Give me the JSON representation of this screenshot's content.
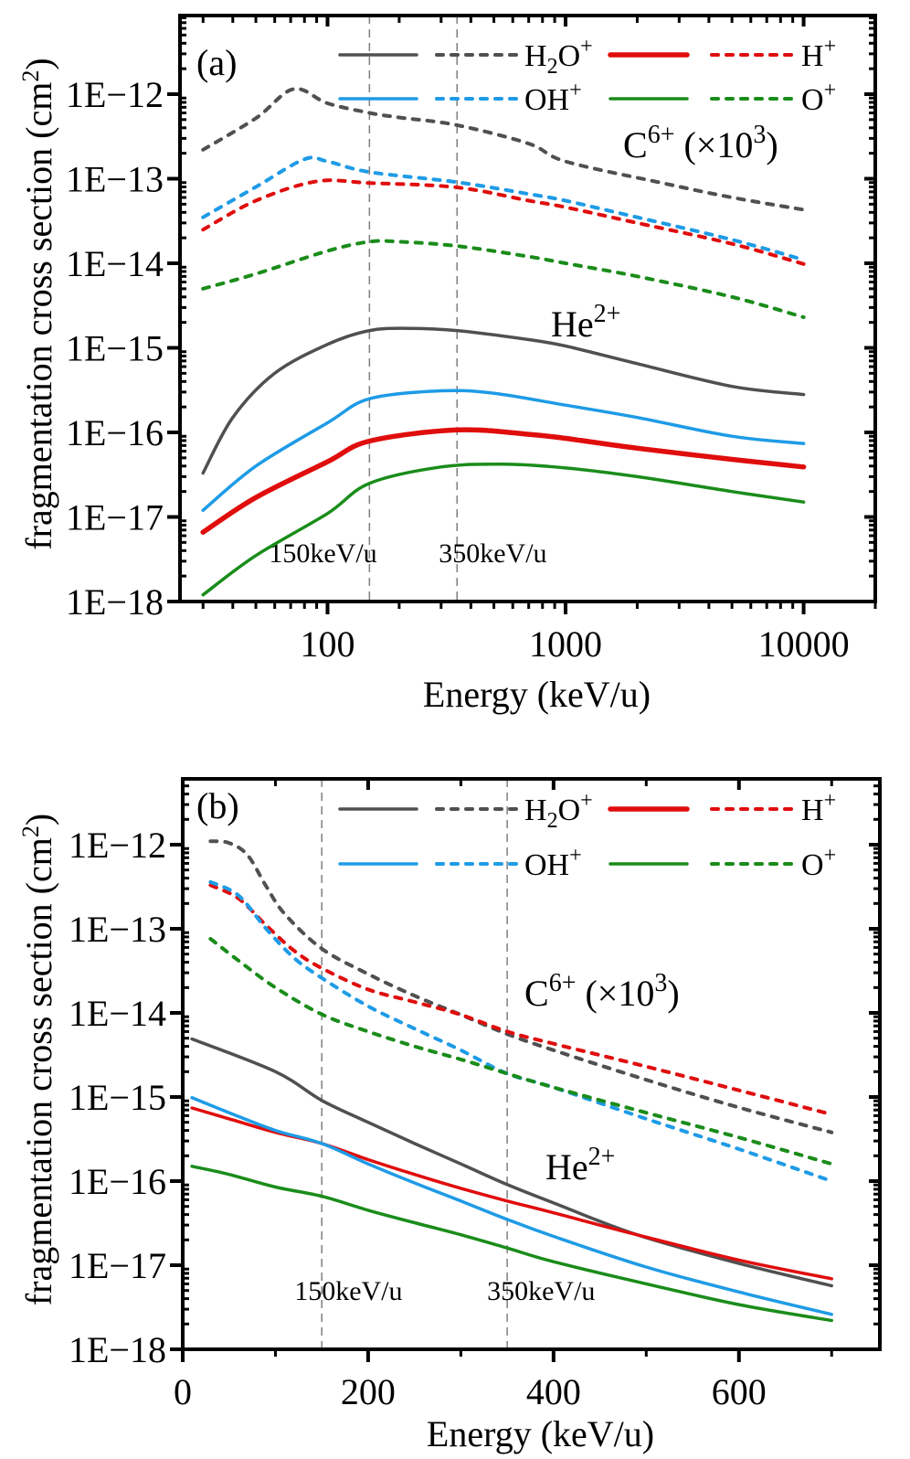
{
  "figure": {
    "colors": {
      "H2O+": "#505050",
      "H+": "#e00d0d",
      "OH+": "#1e9be6",
      "O+": "#1a8c1a",
      "axis": "#000000",
      "guide": "#7f7f7f"
    }
  },
  "chart_data": [
    {
      "panel": "(a)",
      "type": "line",
      "x_scale": "log",
      "y_scale": "log",
      "xlabel": "Energy (keV/u)",
      "ylabel": "fragmentation cross section (cm2)",
      "xlim": [
        24,
        20000
      ],
      "ylim": [
        1e-18,
        4e-12
      ],
      "x_ticks": [
        100,
        1000,
        10000
      ],
      "x_tick_labels": [
        "100",
        "1000",
        "10000"
      ],
      "y_ticks": [
        1e-12,
        1e-13,
        1e-14,
        1e-15,
        1e-16,
        1e-17,
        1e-18
      ],
      "y_tick_labels": [
        "1E−12",
        "1E−13",
        "1E−14",
        "1E−15",
        "1E−16",
        "1E−17",
        "1E−18"
      ],
      "grid": false,
      "legend_position": "top-right",
      "guides": [
        {
          "x": 150,
          "label": "150keV/u"
        },
        {
          "x": 350,
          "label": "350keV/u"
        }
      ],
      "annotations": [
        {
          "text": "C",
          "sup": "6+",
          "suffix": " (×10",
          "suffix_sup": "3",
          "tail": ")",
          "group": "C6+ (x10^3)"
        },
        {
          "text": "He",
          "sup": "2+",
          "group": "He2+"
        }
      ],
      "series": [
        {
          "name": "H2O+ C6+ (x10^3)",
          "fragment": "H2O+",
          "projectile": "C6+",
          "style": "dashed",
          "x": [
            30,
            50,
            72,
            100,
            150,
            200,
            350,
            700,
            1000,
            2500,
            5000,
            10000
          ],
          "y": [
            2.2e-13,
            5.2e-13,
            1.15e-12,
            7.8e-13,
            6e-13,
            5.3e-13,
            4.3e-13,
            2.6e-13,
            1.6e-13,
            9e-14,
            6e-14,
            4.3e-14
          ]
        },
        {
          "name": "OH+ C6+ (x10^3)",
          "fragment": "OH+",
          "projectile": "C6+",
          "style": "dashed",
          "x": [
            30,
            50,
            80,
            100,
            150,
            350,
            700,
            1000,
            2000,
            5000,
            10000
          ],
          "y": [
            3.5e-14,
            8e-14,
            1.7e-13,
            1.6e-13,
            1.2e-13,
            9.1e-14,
            6.6e-14,
            5.5e-14,
            3.5e-14,
            1.9e-14,
            1.1e-14
          ]
        },
        {
          "name": "H+ C6+ (x10^3)",
          "fragment": "H+",
          "projectile": "C6+",
          "style": "dashed",
          "x": [
            30,
            50,
            90,
            150,
            350,
            700,
            1000,
            2000,
            5000,
            10000
          ],
          "y": [
            2.5e-14,
            5.5e-14,
            9.3e-14,
            8.9e-14,
            7.9e-14,
            5.5e-14,
            4.6e-14,
            3e-14,
            1.7e-14,
            9.8e-15
          ]
        },
        {
          "name": "O+ C6+ (x10^3)",
          "fragment": "O+",
          "projectile": "C6+",
          "style": "dashed",
          "x": [
            30,
            50,
            100,
            150,
            200,
            350,
            700,
            1000,
            2000,
            5000,
            10000
          ],
          "y": [
            5e-15,
            7.5e-15,
            1.4e-14,
            1.8e-14,
            1.8e-14,
            1.6e-14,
            1.2e-14,
            1e-14,
            7e-15,
            4e-15,
            2.3e-15
          ]
        },
        {
          "name": "H2O+ He2+",
          "fragment": "H2O+",
          "projectile": "He2+",
          "style": "solid",
          "x": [
            30,
            40,
            60,
            100,
            150,
            220,
            350,
            700,
            1000,
            2000,
            5000,
            10000
          ],
          "y": [
            3.3e-17,
            1.5e-16,
            5e-16,
            1.1e-15,
            1.6e-15,
            1.7e-15,
            1.6e-15,
            1.25e-15,
            1.05e-15,
            6.5e-16,
            3.5e-16,
            2.8e-16
          ]
        },
        {
          "name": "OH+ He2+",
          "fragment": "OH+",
          "projectile": "He2+",
          "style": "solid",
          "x": [
            30,
            50,
            100,
            150,
            300,
            500,
            1000,
            2000,
            5000,
            10000
          ],
          "y": [
            1.2e-17,
            4e-17,
            1.3e-16,
            2.5e-16,
            3.1e-16,
            2.9e-16,
            2.1e-16,
            1.5e-16,
            9e-17,
            7.4e-17
          ]
        },
        {
          "name": "H+ He2+",
          "fragment": "H+",
          "projectile": "He2+",
          "style": "solid-thick",
          "x": [
            30,
            50,
            100,
            150,
            350,
            700,
            1000,
            2000,
            5000,
            10000
          ],
          "y": [
            6.6e-18,
            1.7e-17,
            4.5e-17,
            7.9e-17,
            1.07e-16,
            9.5e-17,
            8.5e-17,
            6.5e-17,
            4.8e-17,
            3.9e-17
          ]
        },
        {
          "name": "O+ He2+",
          "fragment": "O+",
          "projectile": "He2+",
          "style": "solid",
          "x": [
            30,
            50,
            100,
            150,
            300,
            550,
            1000,
            2000,
            5000,
            10000
          ],
          "y": [
            1.2e-18,
            3.5e-18,
            1.1e-17,
            2.5e-17,
            3.9e-17,
            4.2e-17,
            3.8e-17,
            3e-17,
            2e-17,
            1.5e-17
          ]
        }
      ]
    },
    {
      "panel": "(b)",
      "type": "line",
      "x_scale": "linear",
      "y_scale": "log",
      "xlabel": "Energy (keV/u)",
      "ylabel": "fragmentation cross section (cm2)",
      "xlim": [
        0,
        752
      ],
      "ylim": [
        1e-18,
        6e-12
      ],
      "x_ticks": [
        0,
        200,
        400,
        600
      ],
      "x_minor_ticks": [
        100,
        300,
        500,
        700
      ],
      "x_tick_labels": [
        "0",
        "200",
        "400",
        "600"
      ],
      "y_ticks": [
        1e-12,
        1e-13,
        1e-14,
        1e-15,
        1e-16,
        1e-17,
        1e-18
      ],
      "y_tick_labels": [
        "1E−12",
        "1E−13",
        "1E−14",
        "1E−15",
        "1E−16",
        "1E−17",
        "1E−18"
      ],
      "grid": false,
      "legend_position": "top-right",
      "guides": [
        {
          "x": 150,
          "label": "150keV/u"
        },
        {
          "x": 350,
          "label": "350keV/u"
        }
      ],
      "annotations": [
        {
          "text": "C",
          "sup": "6+",
          "suffix": " (×10",
          "suffix_sup": "3",
          "tail": ")",
          "group": "C6+ (x10^3)"
        },
        {
          "text": "He",
          "sup": "2+",
          "group": "He2+"
        }
      ],
      "series": [
        {
          "name": "H2O+ C6+ (x10^3)",
          "fragment": "H2O+",
          "projectile": "C6+",
          "style": "dashed",
          "x": [
            30,
            50,
            70,
            90,
            110,
            150,
            200,
            250,
            300,
            350,
            400,
            500,
            600,
            700
          ],
          "y": [
            1.1e-12,
            1.05e-12,
            7.5e-13,
            3.2e-13,
            1.5e-13,
            5.8e-14,
            2.9e-14,
            1.6e-14,
            9.5e-15,
            5.6e-15,
            3.6e-15,
            1.6e-15,
            7.5e-16,
            3.8e-16
          ]
        },
        {
          "name": "H+ C6+ (x10^3)",
          "fragment": "H+",
          "projectile": "C6+",
          "style": "dashed",
          "x": [
            30,
            60,
            90,
            120,
            150,
            200,
            250,
            300,
            350,
            400,
            500,
            600,
            700
          ],
          "y": [
            3.3e-13,
            2.3e-13,
            1.1e-13,
            5.5e-14,
            3.4e-14,
            1.9e-14,
            1.35e-14,
            9.5e-15,
            6e-15,
            4.3e-15,
            2.3e-15,
            1.2e-15,
            6.2e-16
          ]
        },
        {
          "name": "OH+ C6+ (x10^3)",
          "fragment": "OH+",
          "projectile": "C6+",
          "style": "dashed",
          "x": [
            30,
            60,
            90,
            120,
            150,
            200,
            250,
            300,
            350,
            400,
            500,
            600,
            700
          ],
          "y": [
            3.6e-13,
            2.5e-13,
            1e-13,
            4.5e-14,
            2.6e-14,
            1.2e-14,
            6.5e-15,
            3.6e-15,
            1.9e-15,
            1.3e-15,
            5.5e-16,
            2.4e-16,
            1e-16
          ]
        },
        {
          "name": "O+ C6+ (x10^3)",
          "fragment": "O+",
          "projectile": "C6+",
          "style": "dashed",
          "x": [
            30,
            60,
            100,
            150,
            200,
            250,
            300,
            350,
            400,
            500,
            600,
            700
          ],
          "y": [
            7.6e-14,
            4.2e-14,
            2e-14,
            9.6e-15,
            6e-15,
            4e-15,
            2.8e-15,
            1.9e-15,
            1.3e-15,
            6.5e-16,
            3.3e-16,
            1.6e-16
          ]
        },
        {
          "name": "H2O+ He2+",
          "fragment": "H2O+",
          "projectile": "He2+",
          "style": "solid",
          "x": [
            10,
            100,
            150,
            200,
            250,
            300,
            350,
            400,
            490,
            600,
            700
          ],
          "y": [
            4.9e-15,
            2e-15,
            9.1e-16,
            5e-16,
            2.8e-16,
            1.6e-16,
            9.1e-17,
            5.5e-17,
            2.3e-17,
            1.05e-17,
            5.7e-18
          ]
        },
        {
          "name": "H+ He2+",
          "fragment": "H+",
          "projectile": "He2+",
          "style": "solid",
          "x": [
            10,
            50,
            100,
            150,
            200,
            250,
            300,
            350,
            400,
            490,
            600,
            700
          ],
          "y": [
            7.4e-16,
            5.5e-16,
            3.8e-16,
            2.8e-16,
            1.8e-16,
            1.2e-16,
            8.2e-17,
            5.8e-17,
            4.2e-17,
            2.3e-17,
            1.15e-17,
            6.9e-18
          ]
        },
        {
          "name": "OH+ He2+",
          "fragment": "OH+",
          "projectile": "He2+",
          "style": "solid",
          "x": [
            10,
            50,
            100,
            150,
            200,
            250,
            300,
            350,
            400,
            500,
            600,
            700
          ],
          "y": [
            9.8e-16,
            6.5e-16,
            4e-16,
            2.8e-16,
            1.6e-16,
            9.5e-17,
            5.8e-17,
            3.5e-17,
            2.2e-17,
            9.5e-18,
            4.8e-18,
            2.6e-18
          ]
        },
        {
          "name": "O+ He2+",
          "fragment": "O+",
          "projectile": "He2+",
          "style": "solid",
          "x": [
            10,
            50,
            100,
            150,
            200,
            250,
            300,
            350,
            400,
            500,
            600,
            700
          ],
          "y": [
            1.5e-16,
            1.2e-16,
            8.5e-17,
            6.6e-17,
            4.5e-17,
            3.2e-17,
            2.3e-17,
            1.6e-17,
            1.1e-17,
            6e-18,
            3.4e-18,
            2.2e-18
          ]
        }
      ]
    }
  ],
  "legend": {
    "entries": [
      {
        "fragment": "H2O+",
        "label_main": "H",
        "label_sub": "2",
        "label_tail": "O",
        "label_sup": "+"
      },
      {
        "fragment": "H+",
        "label_main": "H",
        "label_sub": "",
        "label_tail": "",
        "label_sup": "+"
      },
      {
        "fragment": "OH+",
        "label_main": "OH",
        "label_sub": "",
        "label_tail": "",
        "label_sup": "+"
      },
      {
        "fragment": "O+",
        "label_main": "O",
        "label_sub": "",
        "label_tail": "",
        "label_sup": "+"
      }
    ]
  },
  "text": {
    "ylabel_main": "fragmentation cross section (cm",
    "ylabel_sup": "2",
    "ylabel_tail": ")",
    "xlabel": "Energy (keV/u)",
    "panel_a": "(a)",
    "panel_b": "(b)"
  }
}
